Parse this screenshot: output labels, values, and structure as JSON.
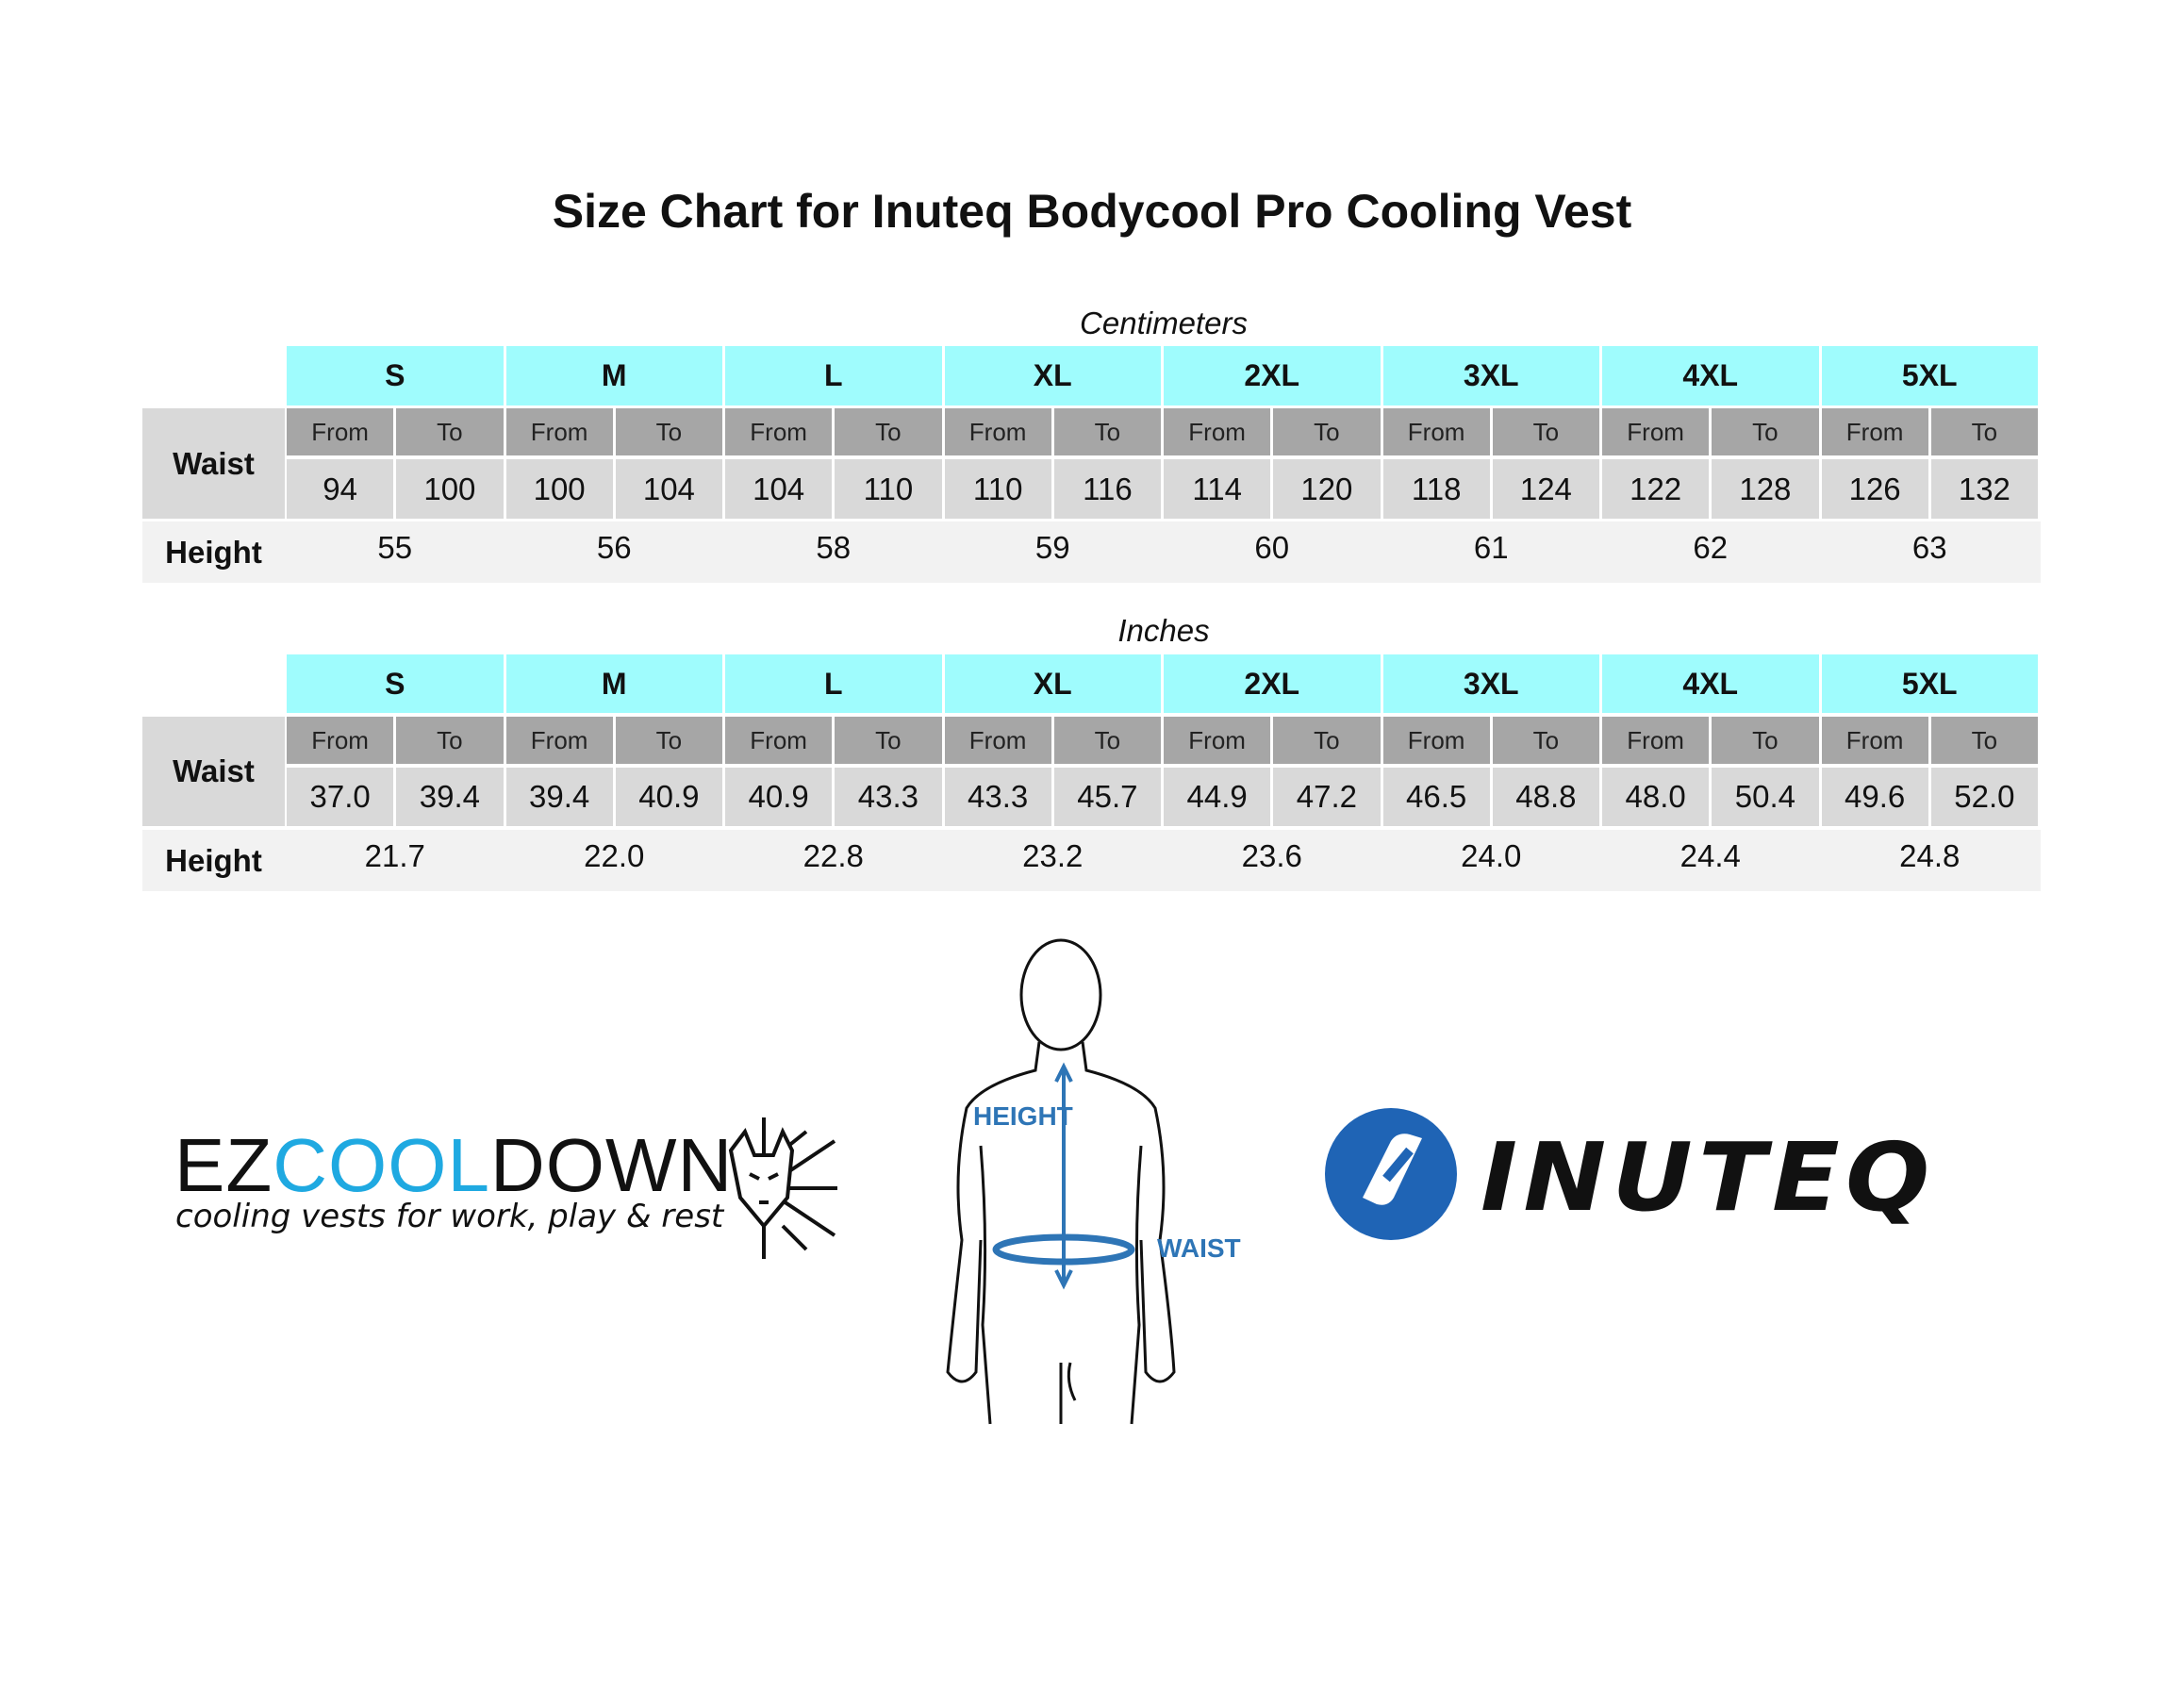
{
  "title": "Size Chart for Inuteq Bodycool Pro Cooling Vest",
  "tables": [
    {
      "caption": "Centimeters",
      "sizes": [
        "S",
        "M",
        "L",
        "XL",
        "2XL",
        "3XL",
        "4XL",
        "5XL"
      ],
      "waist_label": "Waist",
      "height_label": "Height",
      "from_label": "From",
      "to_label": "To",
      "waist": [
        [
          94,
          100
        ],
        [
          100,
          104
        ],
        [
          104,
          110
        ],
        [
          110,
          116
        ],
        [
          114,
          120
        ],
        [
          118,
          124
        ],
        [
          122,
          128
        ],
        [
          126,
          132
        ]
      ],
      "height": [
        55,
        56,
        58,
        59,
        60,
        61,
        62,
        63
      ]
    },
    {
      "caption": "Inches",
      "sizes": [
        "S",
        "M",
        "L",
        "XL",
        "2XL",
        "3XL",
        "4XL",
        "5XL"
      ],
      "waist_label": "Waist",
      "height_label": "Height",
      "from_label": "From",
      "to_label": "To",
      "waist": [
        [
          "37.0",
          "39.4"
        ],
        [
          "39.4",
          "40.9"
        ],
        [
          "40.9",
          "43.3"
        ],
        [
          "43.3",
          "45.7"
        ],
        [
          "44.9",
          "47.2"
        ],
        [
          "46.5",
          "48.8"
        ],
        [
          "48.0",
          "50.4"
        ],
        [
          "49.6",
          "52.0"
        ]
      ],
      "height": [
        "21.7",
        "22.0",
        "22.8",
        "23.2",
        "23.6",
        "24.0",
        "24.4",
        "24.8"
      ]
    }
  ],
  "logos": {
    "ezcooldown": {
      "prefix": "EZ",
      "highlight": "COOL",
      "suffix": "DOWN",
      "tagline": "cooling vests for work, play & rest"
    },
    "inuteq": "INUTEQ"
  },
  "figure": {
    "height_label": "HEIGHT",
    "waist_label": "WAIST"
  }
}
